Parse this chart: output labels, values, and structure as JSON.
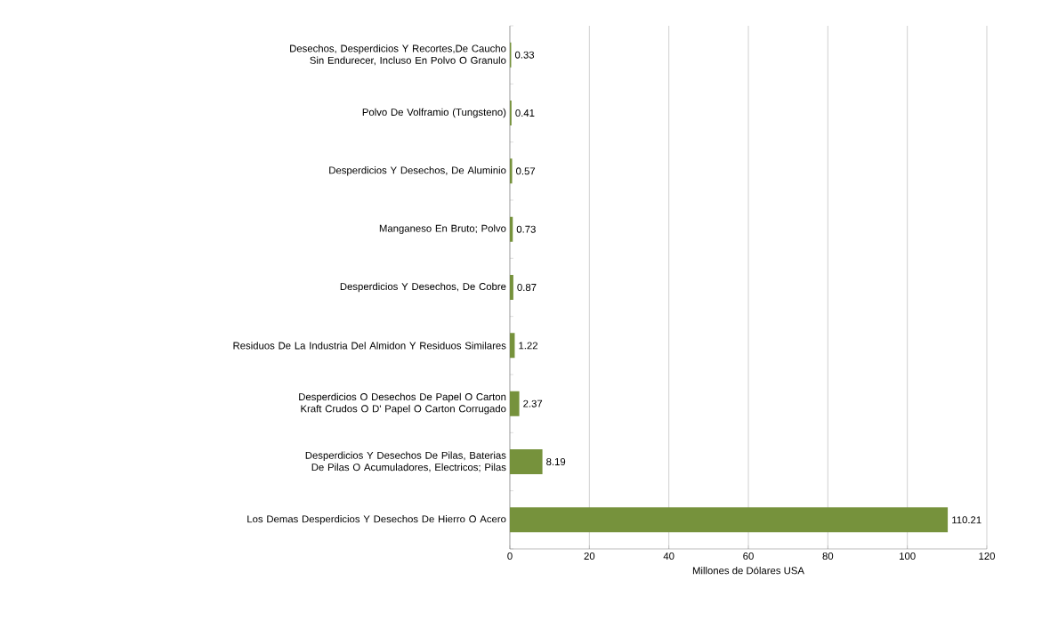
{
  "chart_data": {
    "type": "bar",
    "orientation": "horizontal",
    "categories": [
      "Desechos, Desperdicios Y Recortes,De Caucho Sin Endurecer, Incluso En Polvo O Granulo",
      "Polvo De Volframio (Tungsteno)",
      "Desperdicios Y Desechos, De Aluminio",
      "Manganeso En Bruto; Polvo",
      "Desperdicios Y Desechos, De Cobre",
      "Residuos De La Industria Del Almidon Y Residuos Similares",
      "Desperdicios O Desechos De Papel O Carton Kraft Crudos O D' Papel O Carton Corrugado",
      "Desperdicios Y Desechos De Pilas, Baterias De Pilas O Acumuladores, Electricos; Pilas",
      "Los Demas Desperdicios Y Desechos De Hierro O Acero"
    ],
    "values": [
      0.33,
      0.41,
      0.57,
      0.73,
      0.87,
      1.22,
      2.37,
      8.19,
      110.21
    ],
    "color": "#76923c",
    "xlabel": "Millones de Dólares USA",
    "xlim": [
      0,
      120
    ],
    "xticks": [
      0,
      20,
      40,
      60,
      80,
      100,
      120
    ],
    "grid": "x",
    "data_labels": true
  }
}
